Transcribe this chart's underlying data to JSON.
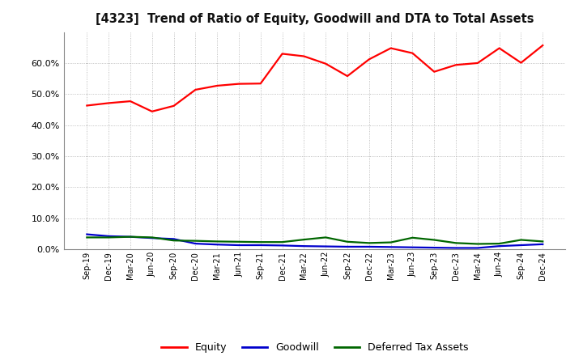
{
  "title": "[4323]  Trend of Ratio of Equity, Goodwill and DTA to Total Assets",
  "x_labels": [
    "Sep-19",
    "Dec-19",
    "Mar-20",
    "Jun-20",
    "Sep-20",
    "Dec-20",
    "Mar-21",
    "Jun-21",
    "Sep-21",
    "Dec-21",
    "Mar-22",
    "Jun-22",
    "Sep-22",
    "Dec-22",
    "Mar-23",
    "Jun-23",
    "Sep-23",
    "Dec-23",
    "Mar-24",
    "Jun-24",
    "Sep-24",
    "Dec-24"
  ],
  "equity": [
    0.463,
    0.471,
    0.477,
    0.444,
    0.462,
    0.514,
    0.527,
    0.533,
    0.534,
    0.63,
    0.622,
    0.598,
    0.558,
    0.612,
    0.648,
    0.632,
    0.572,
    0.594,
    0.6,
    0.648,
    0.601,
    0.657
  ],
  "goodwill": [
    0.048,
    0.042,
    0.04,
    0.036,
    0.033,
    0.018,
    0.015,
    0.013,
    0.013,
    0.012,
    0.01,
    0.009,
    0.008,
    0.008,
    0.007,
    0.006,
    0.005,
    0.004,
    0.004,
    0.01,
    0.013,
    0.016
  ],
  "dta": [
    0.038,
    0.038,
    0.04,
    0.038,
    0.028,
    0.027,
    0.025,
    0.024,
    0.023,
    0.023,
    0.031,
    0.038,
    0.024,
    0.02,
    0.022,
    0.037,
    0.03,
    0.02,
    0.017,
    0.018,
    0.03,
    0.025
  ],
  "equity_color": "#FF0000",
  "goodwill_color": "#0000CC",
  "dta_color": "#006600",
  "plot_bg_color": "#FFFFFF",
  "fig_bg_color": "#FFFFFF",
  "grid_color": "#999999",
  "ylim": [
    0.0,
    0.7
  ],
  "yticks": [
    0.0,
    0.1,
    0.2,
    0.3,
    0.4,
    0.5,
    0.6
  ],
  "legend_labels": [
    "Equity",
    "Goodwill",
    "Deferred Tax Assets"
  ],
  "line_width": 1.6
}
